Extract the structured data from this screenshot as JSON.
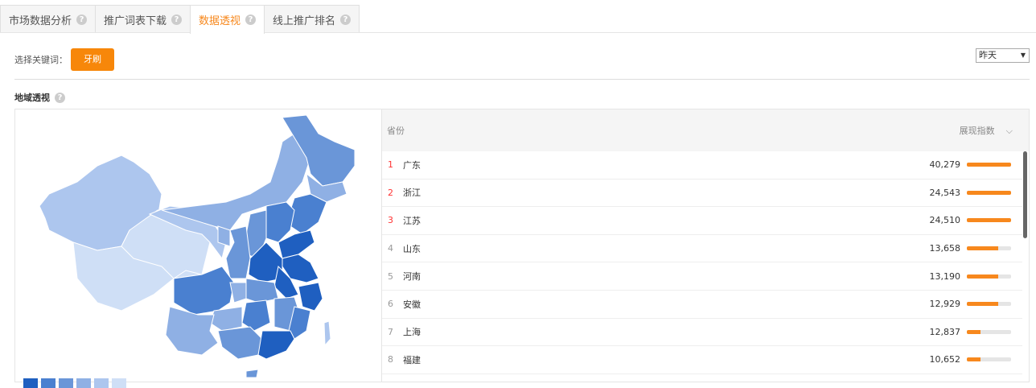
{
  "tabs": [
    {
      "label": "市场数据分析"
    },
    {
      "label": "推广词表下载"
    },
    {
      "label": "数据透视",
      "active": true
    },
    {
      "label": "线上推广排名"
    }
  ],
  "keyword": {
    "label": "选择关键词：",
    "value": "牙刷"
  },
  "date_select": {
    "value": "昨天"
  },
  "section": {
    "title": "地域透视"
  },
  "table": {
    "col_province": "省份",
    "col_index": "展现指数",
    "rows": [
      {
        "rank": "1",
        "province": "广东",
        "value": "40,279",
        "bar": 1.0
      },
      {
        "rank": "2",
        "province": "浙江",
        "value": "24,543",
        "bar": 1.0
      },
      {
        "rank": "3",
        "province": "江苏",
        "value": "24,510",
        "bar": 1.0
      },
      {
        "rank": "4",
        "province": "山东",
        "value": "13,658",
        "bar": 0.7
      },
      {
        "rank": "5",
        "province": "河南",
        "value": "13,190",
        "bar": 0.7
      },
      {
        "rank": "6",
        "province": "安徽",
        "value": "12,929",
        "bar": 0.7
      },
      {
        "rank": "7",
        "province": "上海",
        "value": "12,837",
        "bar": 0.3
      },
      {
        "rank": "8",
        "province": "福建",
        "value": "10,652",
        "bar": 0.3
      }
    ]
  },
  "colors": {
    "accent": "#f7881d",
    "map_scale": [
      "#1f5fc0",
      "#4a80d0",
      "#6a96d8",
      "#8fb0e4",
      "#adc6ee",
      "#cfdff6"
    ]
  }
}
